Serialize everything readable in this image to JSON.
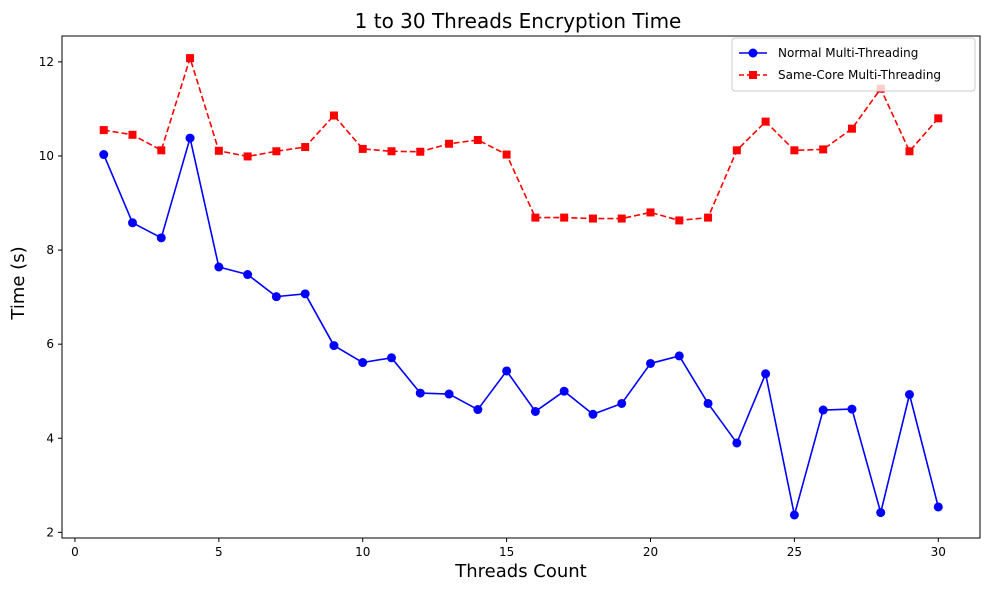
{
  "chart_data": {
    "type": "line",
    "title": "1 to 30 Threads Encryption Time",
    "xlabel": "Threads Count",
    "ylabel": "Time (s)",
    "xlim": [
      -0.45,
      31.45
    ],
    "ylim": [
      1.88,
      12.55
    ],
    "xticks": [
      0,
      5,
      10,
      15,
      20,
      25,
      30
    ],
    "yticks": [
      2,
      4,
      6,
      8,
      10,
      12
    ],
    "legend_position": "upper-right",
    "grid": false,
    "series": [
      {
        "name": "Normal Multi-Threading",
        "color": "#0000ff",
        "line_style": "solid",
        "marker": "circle",
        "x": [
          1,
          2,
          3,
          4,
          5,
          6,
          7,
          8,
          9,
          10,
          11,
          12,
          13,
          14,
          15,
          16,
          17,
          18,
          19,
          20,
          21,
          22,
          23,
          24,
          25,
          26,
          27,
          28,
          29,
          30
        ],
        "y": [
          10.03,
          8.58,
          8.26,
          10.38,
          7.64,
          7.48,
          7.01,
          7.07,
          5.97,
          5.61,
          5.71,
          4.96,
          4.94,
          4.61,
          5.43,
          4.57,
          5.0,
          4.51,
          4.74,
          5.59,
          5.75,
          4.74,
          3.9,
          5.37,
          2.37,
          4.6,
          4.62,
          2.42,
          4.93,
          2.54
        ]
      },
      {
        "name": "Same-Core Multi-Threading",
        "color": "#ff0000",
        "line_style": "dashed",
        "marker": "square",
        "x": [
          1,
          2,
          3,
          4,
          5,
          6,
          7,
          8,
          9,
          10,
          11,
          12,
          13,
          14,
          15,
          16,
          17,
          18,
          19,
          20,
          21,
          22,
          23,
          24,
          25,
          26,
          27,
          28,
          29,
          30
        ],
        "y": [
          10.55,
          10.45,
          10.12,
          12.08,
          10.11,
          9.99,
          10.1,
          10.19,
          10.86,
          10.15,
          10.1,
          10.09,
          10.26,
          10.34,
          10.03,
          8.69,
          8.69,
          8.67,
          8.67,
          8.8,
          8.63,
          8.69,
          10.12,
          10.73,
          10.12,
          10.14,
          10.58,
          11.43,
          10.1,
          10.8
        ]
      }
    ]
  }
}
